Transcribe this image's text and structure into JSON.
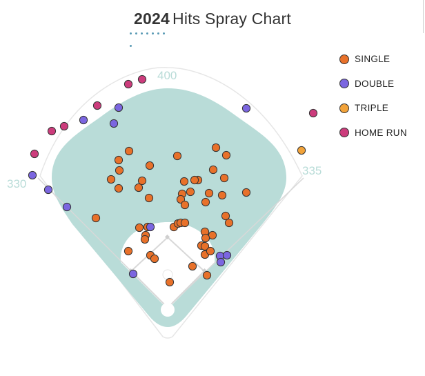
{
  "title": {
    "year": "2024",
    "text": "Hits Spray Chart"
  },
  "legend": [
    {
      "label": "SINGLE",
      "color": "#e8712a"
    },
    {
      "label": "DOUBLE",
      "color": "#7b66e0"
    },
    {
      "label": "TRIPLE",
      "color": "#f2a33a"
    },
    {
      "label": "HOME RUN",
      "color": "#cc3c7c"
    }
  ],
  "field_labels": {
    "left": "330",
    "center": "400",
    "right": "335"
  },
  "colors": {
    "grass": "#b9dcd8",
    "infield": "#ffffff",
    "base_lines": "#d8d8d8",
    "accent": "#5b9bb5"
  },
  "chart_data": {
    "type": "scatter",
    "title": "2024 Hits Spray Chart",
    "series": [
      {
        "name": "SINGLE",
        "points": [
          [
            187,
            219
          ],
          [
            172,
            232
          ],
          [
            217,
            240
          ],
          [
            173,
            247
          ],
          [
            257,
            226
          ],
          [
            313,
            214
          ],
          [
            328,
            225
          ],
          [
            309,
            246
          ],
          [
            287,
            261
          ],
          [
            282,
            261
          ],
          [
            325,
            258
          ],
          [
            161,
            260
          ],
          [
            206,
            262
          ],
          [
            201,
            272
          ],
          [
            172,
            273
          ],
          [
            267,
            263
          ],
          [
            264,
            281
          ],
          [
            262,
            289
          ],
          [
            303,
            280
          ],
          [
            276,
            278
          ],
          [
            216,
            287
          ],
          [
            357,
            279
          ],
          [
            322,
            283
          ],
          [
            298,
            293
          ],
          [
            268,
            297
          ],
          [
            139,
            316
          ],
          [
            202,
            330
          ],
          [
            214,
            329
          ],
          [
            211,
            341
          ],
          [
            210,
            347
          ],
          [
            186,
            364
          ],
          [
            252,
            329
          ],
          [
            258,
            324
          ],
          [
            262,
            323
          ],
          [
            268,
            323
          ],
          [
            297,
            336
          ],
          [
            308,
            341
          ],
          [
            298,
            345
          ],
          [
            292,
            356
          ],
          [
            297,
            357
          ],
          [
            297,
            369
          ],
          [
            305,
            364
          ],
          [
            218,
            370
          ],
          [
            224,
            375
          ],
          [
            279,
            386
          ],
          [
            300,
            399
          ],
          [
            246,
            409
          ],
          [
            327,
            313
          ],
          [
            332,
            323
          ]
        ]
      },
      {
        "name": "DOUBLE",
        "points": [
          [
            172,
            156
          ],
          [
            165,
            179
          ],
          [
            121,
            174
          ],
          [
            47,
            254
          ],
          [
            70,
            275
          ],
          [
            97,
            300
          ],
          [
            218,
            329
          ],
          [
            193,
            397
          ],
          [
            319,
            371
          ],
          [
            329,
            370
          ],
          [
            320,
            380
          ],
          [
            357,
            157
          ]
        ]
      },
      {
        "name": "TRIPLE",
        "points": [
          [
            437,
            218
          ]
        ]
      },
      {
        "name": "HOME RUN",
        "points": [
          [
            186,
            122
          ],
          [
            206,
            115
          ],
          [
            141,
            153
          ],
          [
            93,
            183
          ],
          [
            75,
            190
          ],
          [
            50,
            223
          ],
          [
            454,
            164
          ]
        ]
      }
    ]
  }
}
